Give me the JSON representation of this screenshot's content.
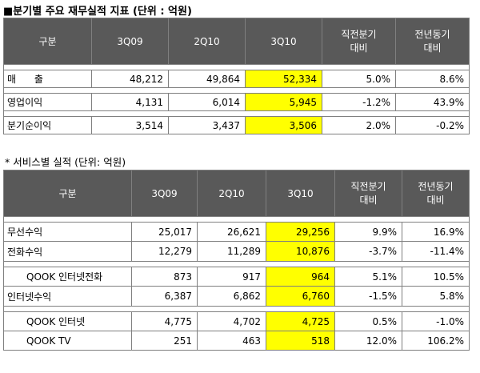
{
  "title": "■분기별 주요 재무실적 지표 (단위 : 억원)",
  "subtitle": "* 서비스별 실적 (단위: 억원)",
  "table1": {
    "headers": {
      "c0": "구분",
      "c1": "3Q09",
      "c2": "2Q10",
      "c3": "3Q10",
      "c4a": "직전분기",
      "c4b": "대비",
      "c5a": "전년동기",
      "c5b": "대비"
    },
    "rows": [
      {
        "label": "매      출",
        "v1": "48,212",
        "v2": "49,864",
        "v3": "52,334",
        "v4": "5.0%",
        "v5": "8.6%"
      },
      {
        "label": "영업이익",
        "v1": "4,131",
        "v2": "6,014",
        "v3": "5,945",
        "v4": "-1.2%",
        "v5": "43.9%"
      },
      {
        "label": "분기순이익",
        "v1": "3,514",
        "v2": "3,437",
        "v3": "3,506",
        "v4": "2.0%",
        "v5": "-0.2%"
      }
    ]
  },
  "table2": {
    "headers": {
      "c0": "구분",
      "c1": "3Q09",
      "c2": "2Q10",
      "c3": "3Q10",
      "c4a": "직전분기",
      "c4b": "대비",
      "c5a": "전년동기",
      "c5b": "대비"
    },
    "rows": [
      {
        "label": "무선수익",
        "v1": "25,017",
        "v2": "26,621",
        "v3": "29,256",
        "v4": "9.9%",
        "v5": "16.9%"
      },
      {
        "label": "전화수익",
        "v1": "12,279",
        "v2": "11,289",
        "v3": "10,876",
        "v4": "-3.7%",
        "v5": "-11.4%"
      },
      {
        "label": "QOOK 인터넷전화",
        "v1": "873",
        "v2": "917",
        "v3": "964",
        "v4": "5.1%",
        "v5": "10.5%"
      },
      {
        "label": "인터넷수익",
        "v1": "6,387",
        "v2": "6,862",
        "v3": "6,760",
        "v4": "-1.5%",
        "v5": "5.8%"
      },
      {
        "label": "QOOK 인터넷",
        "v1": "4,775",
        "v2": "4,702",
        "v3": "4,725",
        "v4": "0.5%",
        "v5": "-1.0%"
      },
      {
        "label": "QOOK TV",
        "v1": "251",
        "v2": "463",
        "v3": "518",
        "v4": "12.0%",
        "v5": "106.2%"
      }
    ]
  }
}
